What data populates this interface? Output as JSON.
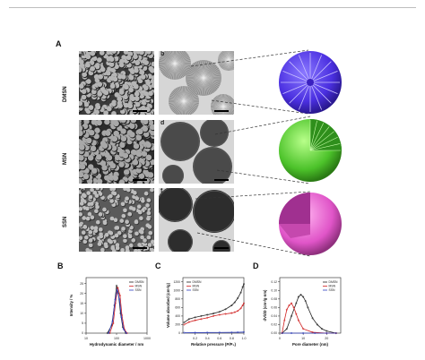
{
  "panel_labels": {
    "A": "A",
    "B": "B",
    "C": "C",
    "D": "D"
  },
  "rows": [
    {
      "label": "DMSN",
      "sem_letter": "a",
      "tem_letter": "b",
      "sphere_color": "#5a3df0"
    },
    {
      "label": "MSN",
      "sem_letter": "c",
      "tem_letter": "d",
      "sphere_color": "#55cc33"
    },
    {
      "label": "SSN",
      "sem_letter": "e",
      "tem_letter": "f",
      "sphere_color": "#e055c8"
    }
  ],
  "chart_data": [
    {
      "type": "line",
      "panel": "B",
      "xlabel": "Hydrodynamic diameter / nm",
      "ylabel": "Intensity / %",
      "x_scale": "log",
      "x_ticks": [
        "10",
        "100",
        "1000"
      ],
      "y_ticks": [
        "0",
        "5",
        "10",
        "15",
        "20",
        "25"
      ],
      "ylim": [
        0,
        28
      ],
      "legend": [
        "DMSN",
        "MSN",
        "SSN"
      ],
      "legend_position": "top-right",
      "series": [
        {
          "name": "DMSN",
          "color": "#222222",
          "x": [
            50,
            70,
            85,
            100,
            115,
            135,
            160,
            200
          ],
          "y": [
            0,
            4,
            14,
            24,
            20,
            10,
            3,
            0
          ]
        },
        {
          "name": "MSN",
          "color": "#d02020",
          "x": [
            60,
            78,
            92,
            110,
            130,
            150,
            180,
            220
          ],
          "y": [
            0,
            5,
            15,
            23,
            19,
            9,
            2,
            0
          ]
        },
        {
          "name": "SSN",
          "color": "#3040c0",
          "x": [
            55,
            74,
            90,
            105,
            125,
            145,
            170,
            210
          ],
          "y": [
            0,
            6,
            17,
            22,
            17,
            8,
            2,
            0
          ]
        }
      ]
    },
    {
      "type": "line",
      "panel": "C",
      "xlabel": "Relative pressure (P/P₀)",
      "ylabel": "Volume absorbed (cm³/g)",
      "x_ticks": [
        "0.2",
        "0.4",
        "0.6",
        "0.8",
        "1.0"
      ],
      "y_ticks": [
        "0",
        "200",
        "400",
        "600",
        "800",
        "1000",
        "1200"
      ],
      "xlim": [
        0,
        1.0
      ],
      "ylim": [
        0,
        1300
      ],
      "legend": [
        "DMSN",
        "MSN",
        "SSN"
      ],
      "legend_position": "top-left",
      "series": [
        {
          "name": "DMSN",
          "color": "#222222",
          "x": [
            0.02,
            0.1,
            0.2,
            0.3,
            0.4,
            0.5,
            0.6,
            0.7,
            0.8,
            0.85,
            0.9,
            0.95,
            0.98,
            1.0
          ],
          "y": [
            250,
            330,
            370,
            400,
            430,
            460,
            500,
            560,
            650,
            720,
            820,
            950,
            1080,
            1150
          ]
        },
        {
          "name": "MSN",
          "color": "#d02020",
          "x": [
            0.02,
            0.1,
            0.2,
            0.3,
            0.4,
            0.5,
            0.6,
            0.7,
            0.8,
            0.85,
            0.9,
            0.95,
            0.98,
            1.0
          ],
          "y": [
            200,
            260,
            300,
            330,
            360,
            400,
            430,
            450,
            470,
            490,
            520,
            580,
            650,
            700
          ]
        },
        {
          "name": "SSN",
          "color": "#3040c0",
          "x": [
            0.02,
            0.2,
            0.4,
            0.6,
            0.8,
            0.9,
            1.0
          ],
          "y": [
            10,
            12,
            14,
            16,
            18,
            20,
            25
          ]
        }
      ]
    },
    {
      "type": "line",
      "panel": "D",
      "xlabel": "Pore diameter (nm)",
      "ylabel": "dV/dD (cm³/g·nm)",
      "x_ticks": [
        "0",
        "10",
        "20"
      ],
      "y_ticks": [
        "0.00",
        "0.02",
        "0.04",
        "0.06",
        "0.08",
        "0.10",
        "0.12"
      ],
      "xlim": [
        0,
        26
      ],
      "ylim": [
        0,
        0.13
      ],
      "legend": [
        "DMSN",
        "MSN",
        "SSN"
      ],
      "legend_position": "top-right",
      "series": [
        {
          "name": "DMSN",
          "color": "#222222",
          "x": [
            1,
            3,
            5,
            7,
            8,
            9,
            10,
            11,
            12,
            14,
            16,
            18,
            20,
            24
          ],
          "y": [
            0.0,
            0.01,
            0.04,
            0.07,
            0.085,
            0.09,
            0.085,
            0.075,
            0.06,
            0.035,
            0.02,
            0.01,
            0.005,
            0.0
          ]
        },
        {
          "name": "MSN",
          "color": "#d02020",
          "x": [
            1,
            2,
            3,
            4,
            5,
            6,
            7,
            8,
            10,
            14,
            20,
            24
          ],
          "y": [
            0.0,
            0.03,
            0.055,
            0.065,
            0.07,
            0.06,
            0.045,
            0.03,
            0.01,
            0.002,
            0.0,
            0.0
          ]
        },
        {
          "name": "SSN",
          "color": "#3040c0",
          "x": [
            1,
            5,
            10,
            15,
            20,
            24
          ],
          "y": [
            0.0,
            0.0,
            0.0,
            0.0,
            0.0,
            0.0
          ]
        }
      ]
    }
  ]
}
